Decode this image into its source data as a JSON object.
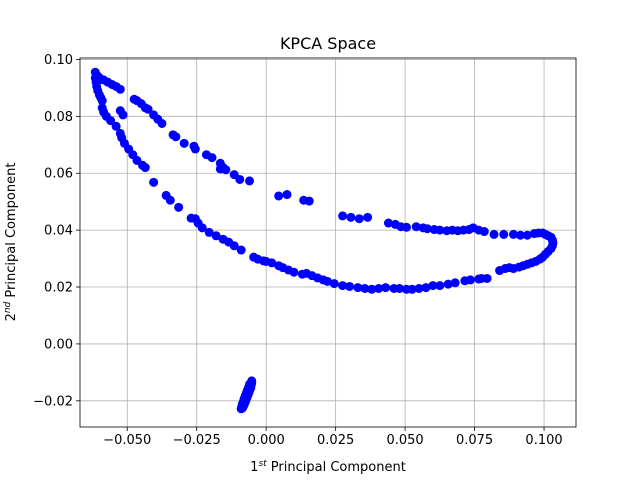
{
  "chart_data": {
    "type": "scatter",
    "title": "KPCA Space",
    "xlabel": {
      "prefix": "1",
      "sup": "st",
      "text": " Principal Component"
    },
    "ylabel": {
      "prefix": "2",
      "sup": "nd",
      "text": " Principal Component"
    },
    "xlim": [
      -0.067,
      0.1115
    ],
    "ylim": [
      -0.0292,
      0.1005
    ],
    "xticks": [
      -0.05,
      -0.025,
      0.0,
      0.025,
      0.05,
      0.075,
      0.1
    ],
    "xtick_labels": [
      "−0.050",
      "−0.025",
      "0.000",
      "0.025",
      "0.050",
      "0.075",
      "0.100"
    ],
    "yticks": [
      -0.02,
      0.0,
      0.02,
      0.04,
      0.06,
      0.08,
      0.1
    ],
    "ytick_labels": [
      "−0.02",
      "0.00",
      "0.02",
      "0.04",
      "0.06",
      "0.08",
      "0.10"
    ],
    "grid": true,
    "marker_color": "#0000ff",
    "series": [
      {
        "values": [
          [
            -0.0615,
            0.0955
          ],
          [
            -0.061,
            0.0945
          ],
          [
            -0.0605,
            0.094
          ],
          [
            -0.06,
            0.0935
          ],
          [
            -0.0595,
            0.093
          ],
          [
            -0.0585,
            0.0928
          ],
          [
            -0.057,
            0.092
          ],
          [
            -0.0555,
            0.0912
          ],
          [
            -0.054,
            0.0905
          ],
          [
            -0.0525,
            0.0895
          ],
          [
            -0.0615,
            0.0935
          ],
          [
            -0.0612,
            0.092
          ],
          [
            -0.061,
            0.0905
          ],
          [
            -0.0606,
            0.089
          ],
          [
            -0.06,
            0.0875
          ],
          [
            -0.0595,
            0.0865
          ],
          [
            -0.059,
            0.0855
          ],
          [
            -0.0475,
            0.086
          ],
          [
            -0.0465,
            0.0855
          ],
          [
            -0.045,
            0.0845
          ],
          [
            -0.0435,
            0.083
          ],
          [
            -0.0425,
            0.0825
          ],
          [
            -0.0405,
            0.0805
          ],
          [
            -0.039,
            0.079
          ],
          [
            -0.0375,
            0.0775
          ],
          [
            -0.0335,
            0.0735
          ],
          [
            -0.0325,
            0.0728
          ],
          [
            -0.0295,
            0.0705
          ],
          [
            -0.026,
            0.0695
          ],
          [
            -0.0255,
            0.0685
          ],
          [
            -0.0215,
            0.0665
          ],
          [
            -0.0195,
            0.0655
          ],
          [
            -0.0165,
            0.0635
          ],
          [
            -0.0155,
            0.062
          ],
          [
            -0.0145,
            0.0612
          ],
          [
            -0.0165,
            0.0615
          ],
          [
            -0.0115,
            0.0595
          ],
          [
            -0.0095,
            0.0578
          ],
          [
            -0.006,
            0.0573
          ],
          [
            0.0045,
            0.052
          ],
          [
            0.0075,
            0.0525
          ],
          [
            0.0135,
            0.0505
          ],
          [
            0.0155,
            0.0502
          ],
          [
            0.0275,
            0.045
          ],
          [
            0.0305,
            0.0445
          ],
          [
            0.0335,
            0.044
          ],
          [
            0.0365,
            0.0445
          ],
          [
            0.044,
            0.0425
          ],
          [
            0.0465,
            0.042
          ],
          [
            0.0485,
            0.0412
          ],
          [
            0.0505,
            0.041
          ],
          [
            0.054,
            0.0412
          ],
          [
            0.0565,
            0.0408
          ],
          [
            0.058,
            0.0405
          ],
          [
            0.0605,
            0.0402
          ],
          [
            0.0625,
            0.04
          ],
          [
            0.065,
            0.0398
          ],
          [
            0.067,
            0.04
          ],
          [
            0.069,
            0.0398
          ],
          [
            0.071,
            0.04
          ],
          [
            0.073,
            0.0402
          ],
          [
            0.0745,
            0.0408
          ],
          [
            0.0765,
            0.04
          ],
          [
            0.0785,
            0.0395
          ],
          [
            0.082,
            0.0385
          ],
          [
            0.0855,
            0.0385
          ],
          [
            0.089,
            0.0385
          ],
          [
            0.0915,
            0.0382
          ],
          [
            0.094,
            0.0382
          ],
          [
            0.0965,
            0.0388
          ],
          [
            0.098,
            0.039
          ],
          [
            0.0995,
            0.039
          ],
          [
            0.1005,
            0.0385
          ],
          [
            0.1015,
            0.038
          ],
          [
            0.1025,
            0.0375
          ],
          [
            0.103,
            0.0365
          ],
          [
            0.1032,
            0.0355
          ],
          [
            0.103,
            0.0345
          ],
          [
            0.1025,
            0.0335
          ],
          [
            0.1015,
            0.0325
          ],
          [
            0.1005,
            0.0315
          ],
          [
            0.0995,
            0.0305
          ],
          [
            0.0985,
            0.0298
          ],
          [
            0.097,
            0.029
          ],
          [
            0.0955,
            0.0285
          ],
          [
            0.094,
            0.028
          ],
          [
            0.0925,
            0.0275
          ],
          [
            0.091,
            0.027
          ],
          [
            0.089,
            0.0265
          ],
          [
            0.0875,
            0.0268
          ],
          [
            0.086,
            0.0265
          ],
          [
            0.084,
            0.0258
          ],
          [
            0.0795,
            0.023
          ],
          [
            0.0775,
            0.023
          ],
          [
            0.0765,
            0.0228
          ],
          [
            0.0735,
            0.0225
          ],
          [
            0.0715,
            0.0222
          ],
          [
            0.068,
            0.0215
          ],
          [
            0.0655,
            0.021
          ],
          [
            0.0625,
            0.0205
          ],
          [
            0.06,
            0.0205
          ],
          [
            0.0575,
            0.0198
          ],
          [
            0.055,
            0.0195
          ],
          [
            0.0525,
            0.0192
          ],
          [
            0.0505,
            0.0192
          ],
          [
            0.048,
            0.0195
          ],
          [
            0.046,
            0.0195
          ],
          [
            0.043,
            0.0198
          ],
          [
            0.0405,
            0.0195
          ],
          [
            0.038,
            0.0192
          ],
          [
            0.0355,
            0.0195
          ],
          [
            0.033,
            0.0198
          ],
          [
            0.03,
            0.0202
          ],
          [
            0.0275,
            0.0205
          ],
          [
            0.0245,
            0.0212
          ],
          [
            0.022,
            0.022
          ],
          [
            0.0205,
            0.0225
          ],
          [
            0.0185,
            0.0232
          ],
          [
            0.0165,
            0.024
          ],
          [
            0.0145,
            0.0248
          ],
          [
            0.013,
            0.0245
          ],
          [
            0.01,
            0.0252
          ],
          [
            0.008,
            0.026
          ],
          [
            0.006,
            0.0268
          ],
          [
            0.0045,
            0.0275
          ],
          [
            0.002,
            0.0285
          ],
          [
            0.0,
            0.029
          ],
          [
            -0.001,
            0.0292
          ],
          [
            -0.003,
            0.0298
          ],
          [
            -0.0045,
            0.0305
          ],
          [
            -0.009,
            0.033
          ],
          [
            -0.0115,
            0.0345
          ],
          [
            -0.0135,
            0.0358
          ],
          [
            -0.0155,
            0.0368
          ],
          [
            -0.018,
            0.038
          ],
          [
            -0.0205,
            0.0392
          ],
          [
            -0.023,
            0.0408
          ],
          [
            -0.0245,
            0.0425
          ],
          [
            -0.0255,
            0.044
          ],
          [
            -0.027,
            0.0442
          ],
          [
            -0.0315,
            0.048
          ],
          [
            -0.0345,
            0.0505
          ],
          [
            -0.036,
            0.0522
          ],
          [
            -0.0405,
            0.0568
          ],
          [
            -0.0435,
            0.062
          ],
          [
            -0.0445,
            0.0628
          ],
          [
            -0.0465,
            0.0645
          ],
          [
            -0.048,
            0.0665
          ],
          [
            -0.0495,
            0.0685
          ],
          [
            -0.051,
            0.0705
          ],
          [
            -0.052,
            0.0725
          ],
          [
            -0.0525,
            0.074
          ],
          [
            -0.054,
            0.0765
          ],
          [
            -0.056,
            0.0785
          ],
          [
            -0.0575,
            0.08
          ],
          [
            -0.0585,
            0.0815
          ],
          [
            -0.059,
            0.083
          ],
          [
            -0.0525,
            0.082
          ],
          [
            -0.0515,
            0.0805
          ],
          [
            -0.0085,
            -0.0225
          ],
          [
            -0.0083,
            -0.022
          ],
          [
            -0.008,
            -0.0215
          ],
          [
            -0.0078,
            -0.021
          ],
          [
            -0.0076,
            -0.0205
          ],
          [
            -0.0074,
            -0.02
          ],
          [
            -0.0072,
            -0.0195
          ],
          [
            -0.007,
            -0.019
          ],
          [
            -0.0068,
            -0.0185
          ],
          [
            -0.0066,
            -0.018
          ],
          [
            -0.0064,
            -0.0175
          ],
          [
            -0.0062,
            -0.017
          ],
          [
            -0.006,
            -0.0165
          ],
          [
            -0.0058,
            -0.016
          ],
          [
            -0.0056,
            -0.0155
          ],
          [
            -0.0055,
            -0.015
          ],
          [
            -0.0054,
            -0.0145
          ],
          [
            -0.0053,
            -0.014
          ],
          [
            -0.0052,
            -0.0135
          ],
          [
            -0.0052,
            -0.013
          ],
          [
            -0.009,
            -0.0228
          ],
          [
            -0.0088,
            -0.0222
          ],
          [
            -0.0086,
            -0.0212
          ],
          [
            -0.0082,
            -0.0202
          ],
          [
            -0.0079,
            -0.0192
          ],
          [
            -0.0075,
            -0.0182
          ],
          [
            -0.0071,
            -0.0172
          ],
          [
            -0.0067,
            -0.0162
          ],
          [
            -0.0063,
            -0.0152
          ],
          [
            -0.006,
            -0.0142
          ]
        ]
      }
    ]
  }
}
